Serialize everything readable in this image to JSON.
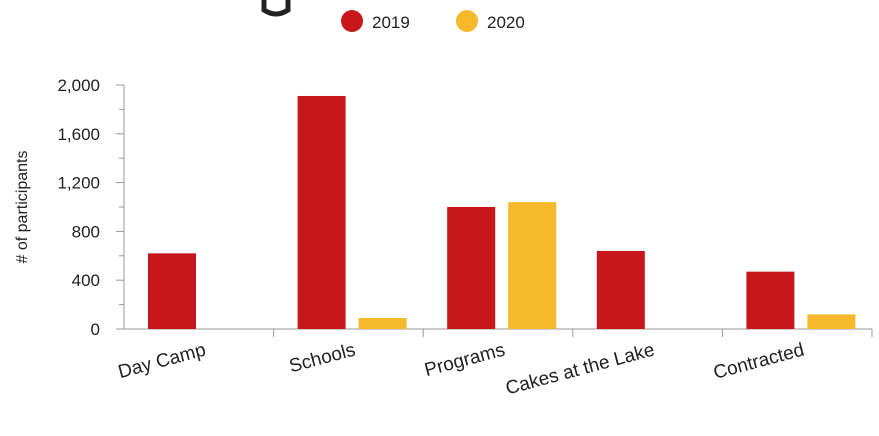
{
  "chart_data": {
    "type": "bar",
    "categories": [
      "Day Camp",
      "Schools",
      "Programs",
      "Cakes at the Lake",
      "Contracted"
    ],
    "series": [
      {
        "name": "2019",
        "color": "#c8161d",
        "values": [
          620,
          1910,
          1000,
          640,
          470
        ]
      },
      {
        "name": "2020",
        "color": "#f6b92b",
        "values": [
          null,
          90,
          1040,
          null,
          120
        ]
      }
    ],
    "ylabel": "# of participants",
    "xlabel": "",
    "ylim": [
      0,
      2000
    ],
    "yticks": [
      0,
      400,
      800,
      1200,
      1600,
      2000
    ],
    "ytick_labels": [
      "0",
      "400",
      "800",
      "1,200",
      "1,600",
      "2,000"
    ],
    "legend_position": "top-center",
    "grid": false
  }
}
